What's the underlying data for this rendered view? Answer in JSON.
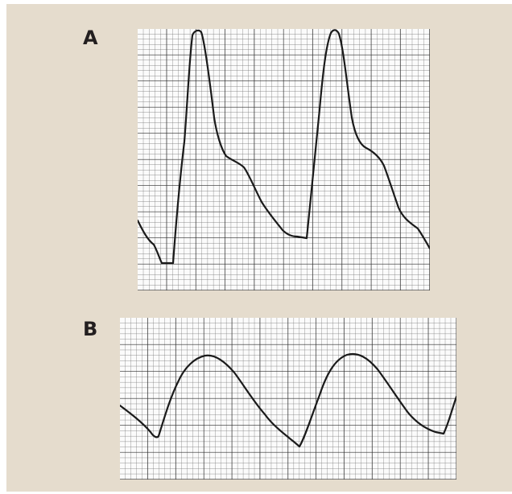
{
  "panels": [
    {
      "id": "A",
      "label": "A",
      "waveform": "sharp-upstroke-with-dicrotic-notch",
      "beats": 2
    },
    {
      "id": "B",
      "label": "B",
      "waveform": "damped-rounded",
      "beats": 2
    }
  ],
  "colors": {
    "background": "#e5dccd",
    "paper": "#fbfbfb",
    "grid_minor": "#6e6e6e",
    "grid_major": "#2a2a2a",
    "trace": "#1a1a1a",
    "label_text": "#231f20"
  }
}
